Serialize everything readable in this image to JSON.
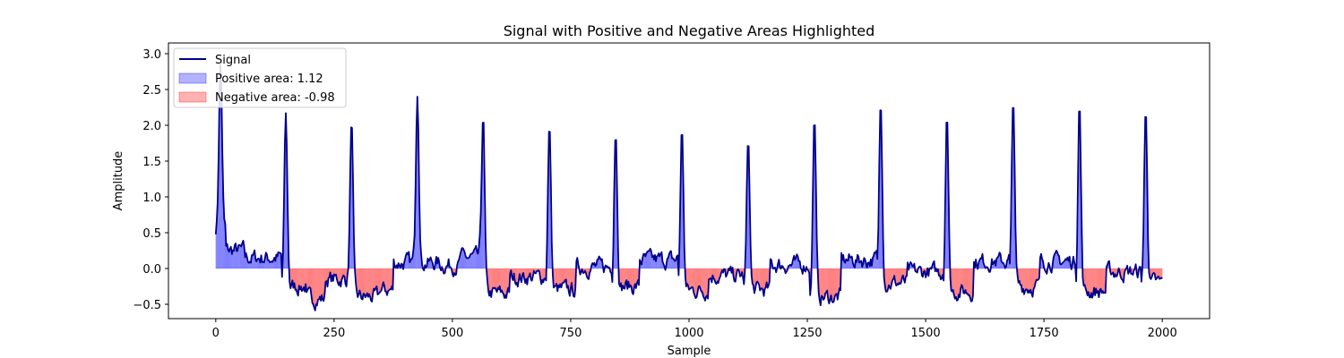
{
  "chart_data": {
    "type": "area",
    "title": "Signal with Positive and Negative Areas Highlighted",
    "xlabel": "Sample",
    "ylabel": "Amplitude",
    "xlim": [
      -100,
      2100
    ],
    "ylim": [
      -0.7,
      3.15
    ],
    "xticks": [
      0,
      250,
      500,
      750,
      1000,
      1250,
      1500,
      1750,
      2000
    ],
    "xtick_labels": [
      "0",
      "250",
      "500",
      "750",
      "1000",
      "1250",
      "1500",
      "1750",
      "2000"
    ],
    "yticks": [
      -0.5,
      0.0,
      0.5,
      1.0,
      1.5,
      2.0,
      2.5,
      3.0
    ],
    "ytick_labels": [
      "−0.5",
      "0.0",
      "0.5",
      "1.0",
      "1.5",
      "2.0",
      "2.5",
      "3.0"
    ],
    "grid": false,
    "legend_position": "top-left",
    "legend": [
      {
        "label": "Signal",
        "kind": "line",
        "color": "#00008b"
      },
      {
        "label": "Positive area: 1.12",
        "kind": "patch",
        "color": "#0000ff"
      },
      {
        "label": "Negative area: -0.98",
        "kind": "patch",
        "color": "#ff0000"
      }
    ],
    "colors": {
      "line": "#00008b",
      "positive_fill": "#0000ff",
      "negative_fill": "#ff0000",
      "fill_alpha": 0.3
    },
    "peaks": [
      {
        "x": 10,
        "y": 2.85
      },
      {
        "x": 148,
        "y": 2.17
      },
      {
        "x": 287,
        "y": 2.08
      },
      {
        "x": 426,
        "y": 2.4
      },
      {
        "x": 565,
        "y": 2.13
      },
      {
        "x": 705,
        "y": 2.02
      },
      {
        "x": 845,
        "y": 1.9
      },
      {
        "x": 985,
        "y": 1.97
      },
      {
        "x": 1125,
        "y": 1.81
      },
      {
        "x": 1265,
        "y": 2.12
      },
      {
        "x": 1405,
        "y": 2.33
      },
      {
        "x": 1545,
        "y": 2.16
      },
      {
        "x": 1685,
        "y": 2.37
      },
      {
        "x": 1825,
        "y": 2.32
      },
      {
        "x": 1965,
        "y": 2.23
      }
    ],
    "baseline_segments": [
      {
        "x0": 0,
        "x1": 20,
        "y": 0.55
      },
      {
        "x0": 20,
        "x1": 60,
        "y": 0.25
      },
      {
        "x0": 60,
        "x1": 138,
        "y": 0.15
      },
      {
        "x0": 158,
        "x1": 190,
        "y": -0.25
      },
      {
        "x0": 190,
        "x1": 230,
        "y": -0.42
      },
      {
        "x0": 230,
        "x1": 278,
        "y": -0.15
      },
      {
        "x0": 296,
        "x1": 345,
        "y": -0.4
      },
      {
        "x0": 345,
        "x1": 375,
        "y": -0.3
      },
      {
        "x0": 375,
        "x1": 416,
        "y": 0.08
      },
      {
        "x0": 436,
        "x1": 470,
        "y": 0.08
      },
      {
        "x0": 470,
        "x1": 515,
        "y": 0.05
      },
      {
        "x0": 515,
        "x1": 555,
        "y": 0.15
      },
      {
        "x0": 575,
        "x1": 620,
        "y": -0.35
      },
      {
        "x0": 620,
        "x1": 695,
        "y": -0.12
      },
      {
        "x0": 715,
        "x1": 760,
        "y": -0.3
      },
      {
        "x0": 760,
        "x1": 835,
        "y": 0.02
      },
      {
        "x0": 855,
        "x1": 895,
        "y": -0.25
      },
      {
        "x0": 895,
        "x1": 975,
        "y": 0.12
      },
      {
        "x0": 995,
        "x1": 1040,
        "y": -0.3
      },
      {
        "x0": 1040,
        "x1": 1115,
        "y": -0.1
      },
      {
        "x0": 1135,
        "x1": 1170,
        "y": -0.3
      },
      {
        "x0": 1170,
        "x1": 1255,
        "y": 0.05
      },
      {
        "x0": 1275,
        "x1": 1320,
        "y": -0.4
      },
      {
        "x0": 1320,
        "x1": 1395,
        "y": 0.12
      },
      {
        "x0": 1415,
        "x1": 1460,
        "y": -0.2
      },
      {
        "x0": 1460,
        "x1": 1535,
        "y": -0.05
      },
      {
        "x0": 1555,
        "x1": 1600,
        "y": -0.32
      },
      {
        "x0": 1600,
        "x1": 1675,
        "y": 0.1
      },
      {
        "x0": 1695,
        "x1": 1740,
        "y": -0.25
      },
      {
        "x0": 1740,
        "x1": 1815,
        "y": 0.1
      },
      {
        "x0": 1835,
        "x1": 1880,
        "y": -0.32
      },
      {
        "x0": 1880,
        "x1": 1955,
        "y": -0.05
      },
      {
        "x0": 1975,
        "x1": 2000,
        "y": -0.2
      }
    ]
  }
}
